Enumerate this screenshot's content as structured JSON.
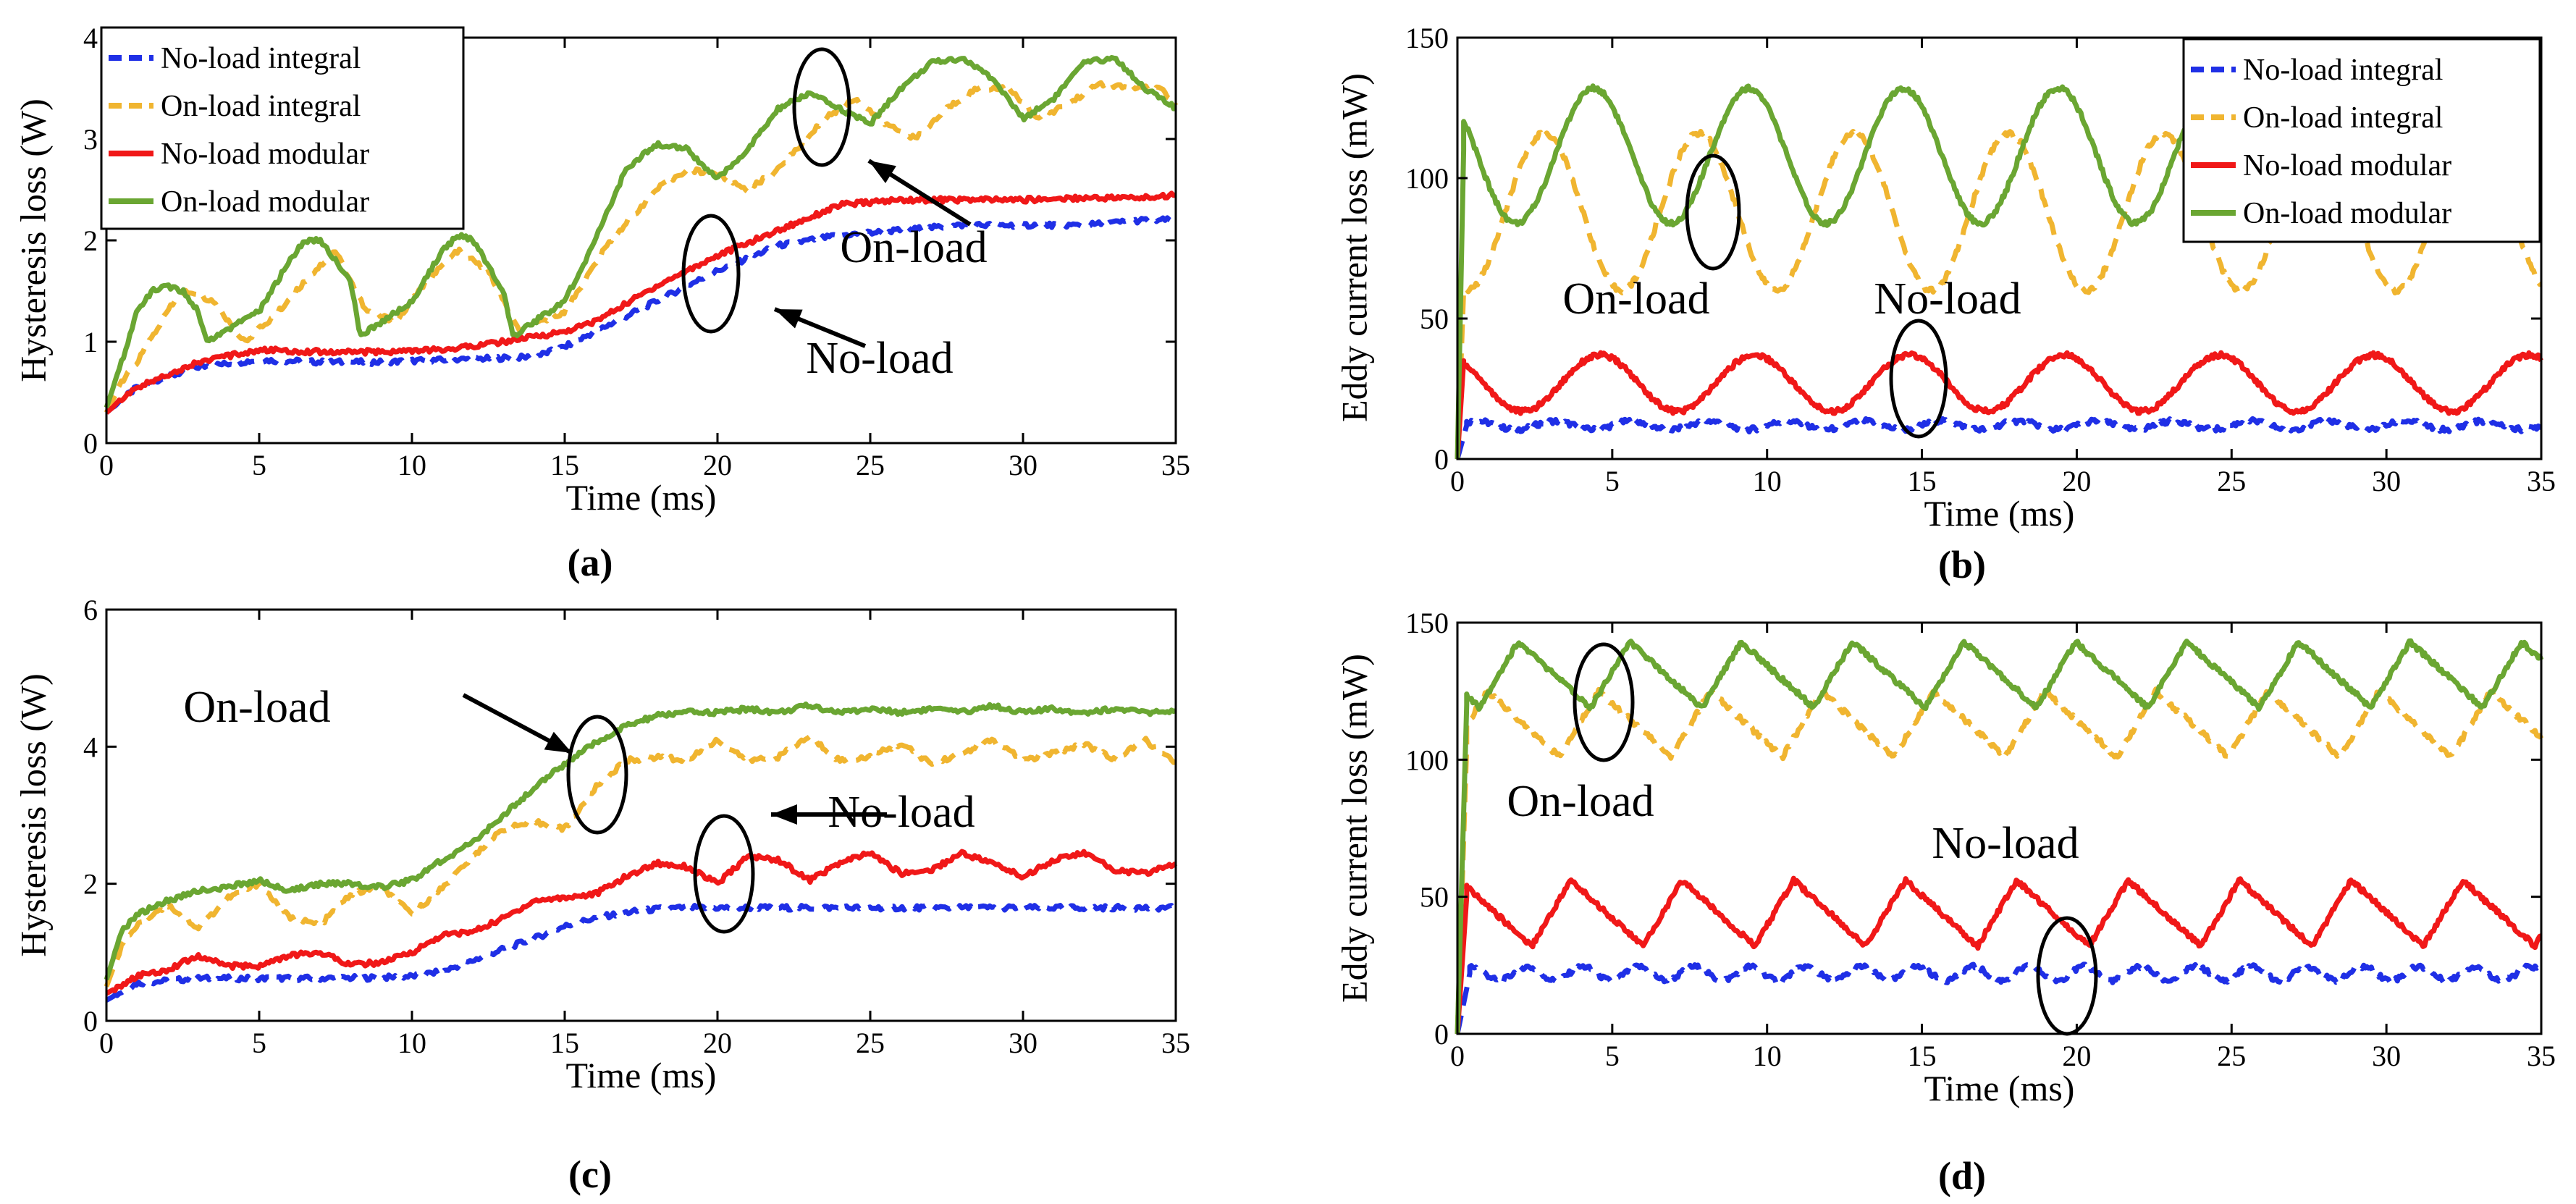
{
  "figure": {
    "series_colors": {
      "no_load_integral": "#1f2fe6",
      "on_load_integral": "#f0b530",
      "no_load_modular": "#f01818",
      "on_load_modular": "#6aa632"
    }
  },
  "chart_data": [
    {
      "id": "a",
      "panel_label": "(a)",
      "type": "line",
      "xlabel": "Time (ms)",
      "ylabel": "Hysteresis loss (W)",
      "xlim": [
        0,
        35
      ],
      "ylim": [
        0,
        4
      ],
      "xticks": [
        "0",
        "5",
        "10",
        "15",
        "20",
        "25",
        "30",
        "35"
      ],
      "yticks": [
        "0",
        "1",
        "2",
        "3",
        "4"
      ],
      "legend": {
        "position": "top-left",
        "entries": [
          "No-load integral",
          "On-load integral",
          "No-load modular",
          "On-load modular"
        ]
      },
      "annotations": [
        "On-load",
        "No-load"
      ],
      "series": [
        {
          "name": "No-load integral",
          "style": "dash",
          "color": "#1f2fe6",
          "x": [
            0,
            1,
            3,
            5,
            7,
            9,
            11,
            13,
            14,
            15,
            16,
            18,
            20,
            22,
            24,
            26,
            28,
            30,
            32,
            34,
            35
          ],
          "y": [
            0.3,
            0.55,
            0.75,
            0.82,
            0.8,
            0.8,
            0.82,
            0.84,
            0.85,
            0.95,
            1.1,
            1.4,
            1.7,
            1.95,
            2.05,
            2.1,
            2.15,
            2.15,
            2.15,
            2.2,
            2.2
          ]
        },
        {
          "name": "On-load integral",
          "style": "dash",
          "color": "#f0b530",
          "x": [
            0,
            0.5,
            1,
            2,
            2.5,
            3.5,
            4.5,
            5.5,
            6.5,
            7.5,
            8.5,
            9.5,
            10.5,
            11.5,
            12.5,
            13.5,
            15,
            16.5,
            18,
            19,
            20,
            21,
            22,
            23.5,
            24.5,
            25.5,
            26.5,
            27.5,
            28.5,
            29.5,
            30.5,
            31.5,
            32.5,
            33.5,
            34.5,
            35
          ],
          "y": [
            0.3,
            0.6,
            0.8,
            1.3,
            1.5,
            1.4,
            1.0,
            1.25,
            1.6,
            1.9,
            1.3,
            1.2,
            1.6,
            1.9,
            1.7,
            1.1,
            1.3,
            2.0,
            2.5,
            2.7,
            2.65,
            2.5,
            2.7,
            3.2,
            3.4,
            3.15,
            3.0,
            3.3,
            3.5,
            3.5,
            3.2,
            3.35,
            3.55,
            3.5,
            3.5,
            3.35
          ]
        },
        {
          "name": "No-load modular",
          "style": "solid",
          "color": "#f01818",
          "x": [
            0,
            1,
            3,
            5,
            7,
            9,
            11,
            13,
            15,
            16,
            18,
            20,
            22,
            24,
            26,
            28,
            30,
            32,
            34,
            35
          ],
          "y": [
            0.3,
            0.55,
            0.8,
            0.92,
            0.9,
            0.9,
            0.92,
            1.0,
            1.1,
            1.2,
            1.55,
            1.85,
            2.1,
            2.35,
            2.4,
            2.4,
            2.4,
            2.42,
            2.42,
            2.45
          ]
        },
        {
          "name": "On-load modular",
          "style": "solid",
          "color": "#6aa632",
          "x": [
            0,
            0.5,
            1,
            1.5,
            2,
            2.5,
            3,
            3.3,
            5,
            6,
            6.5,
            7,
            8,
            8.3,
            10,
            11,
            11.5,
            12,
            13,
            13.3,
            15,
            16,
            17,
            18,
            19,
            20,
            21,
            22,
            23,
            24,
            25,
            26,
            27,
            28,
            29,
            30,
            31,
            32,
            33,
            34,
            35
          ],
          "y": [
            0.35,
            0.8,
            1.3,
            1.5,
            1.55,
            1.5,
            1.3,
            1.0,
            1.3,
            1.8,
            2.0,
            2.0,
            1.6,
            1.05,
            1.4,
            1.9,
            2.05,
            2.0,
            1.5,
            1.05,
            1.4,
            2.0,
            2.7,
            2.95,
            2.9,
            2.6,
            2.9,
            3.3,
            3.45,
            3.3,
            3.15,
            3.5,
            3.75,
            3.8,
            3.6,
            3.2,
            3.4,
            3.75,
            3.8,
            3.5,
            3.3
          ]
        }
      ]
    },
    {
      "id": "b",
      "panel_label": "(b)",
      "type": "line",
      "xlabel": "Time (ms)",
      "ylabel": "Eddy current loss (mW)",
      "xlim": [
        0,
        35
      ],
      "ylim": [
        0,
        150
      ],
      "xticks": [
        "0",
        "5",
        "10",
        "15",
        "20",
        "25",
        "30",
        "35"
      ],
      "yticks": [
        "0",
        "50",
        "100",
        "150"
      ],
      "legend": {
        "position": "top-right",
        "entries": [
          "No-load integral",
          "On-load integral",
          "No-load modular",
          "On-load modular"
        ]
      },
      "annotations": [
        "On-load",
        "No-load"
      ],
      "series": [
        {
          "name": "No-load integral",
          "style": "dash",
          "color": "#1f2fe6",
          "x": [
            0,
            0.3,
            35
          ],
          "y": [
            0,
            12,
            12
          ],
          "wave": {
            "amp": 1.5,
            "period": 2.5
          }
        },
        {
          "name": "On-load integral",
          "style": "dash",
          "color": "#f0b530",
          "x": [
            0,
            0.2,
            35
          ],
          "y": [
            0,
            60,
            60
          ],
          "wave": {
            "shape": "cos",
            "base": 88,
            "amp": 28,
            "period": 5.0,
            "phase": 2.2
          }
        },
        {
          "name": "No-load modular",
          "style": "solid",
          "color": "#f01818",
          "x": [
            0,
            0.2,
            35
          ],
          "y": [
            0,
            35,
            35
          ],
          "wave": {
            "shape": "cos",
            "base": 27,
            "amp": 10,
            "period": 5.0,
            "phase": 5.4
          }
        },
        {
          "name": "On-load modular",
          "style": "solid",
          "color": "#6aa632",
          "x": [
            0,
            0.2,
            35
          ],
          "y": [
            0,
            110,
            110
          ],
          "wave": {
            "shape": "cos",
            "base": 108,
            "amp": 24,
            "period": 5.0,
            "phase": 0.6
          }
        }
      ]
    },
    {
      "id": "c",
      "panel_label": "(c)",
      "type": "line",
      "xlabel": "Time (ms)",
      "ylabel": "Hysteresis loss (W)",
      "xlim": [
        0,
        35
      ],
      "ylim": [
        0,
        6
      ],
      "xticks": [
        "0",
        "5",
        "10",
        "15",
        "20",
        "25",
        "30",
        "35"
      ],
      "yticks": [
        "0",
        "2",
        "4",
        "6"
      ],
      "annotations": [
        "On-load",
        "No-load"
      ],
      "series": [
        {
          "name": "No-load integral",
          "style": "dash",
          "color": "#1f2fe6",
          "x": [
            0,
            1,
            3,
            5,
            7,
            9,
            10,
            11,
            12,
            13,
            14,
            15,
            16,
            17,
            18,
            19,
            20,
            22,
            25,
            30,
            35
          ],
          "y": [
            0.3,
            0.55,
            0.62,
            0.62,
            0.62,
            0.63,
            0.65,
            0.72,
            0.88,
            1.05,
            1.2,
            1.38,
            1.5,
            1.58,
            1.63,
            1.65,
            1.65,
            1.65,
            1.65,
            1.65,
            1.65
          ]
        },
        {
          "name": "On-load integral",
          "style": "dash",
          "color": "#f0b530",
          "x": [
            0,
            0.5,
            1,
            2,
            3,
            4,
            5,
            6,
            7,
            8,
            9,
            10,
            11,
            12,
            13,
            14,
            15,
            16,
            17,
            18,
            19,
            20,
            21,
            22,
            23,
            24,
            25,
            26,
            27,
            28,
            29,
            30,
            31,
            32,
            33,
            34,
            35
          ],
          "y": [
            0.5,
            1.1,
            1.4,
            1.7,
            1.35,
            1.8,
            2.0,
            1.5,
            1.4,
            1.85,
            1.95,
            1.55,
            1.95,
            2.4,
            2.8,
            2.9,
            2.8,
            3.4,
            3.8,
            3.85,
            3.8,
            4.1,
            3.8,
            3.85,
            4.15,
            3.8,
            3.85,
            4.05,
            3.75,
            3.9,
            4.1,
            3.8,
            3.9,
            4.05,
            3.8,
            4.1,
            3.75
          ]
        },
        {
          "name": "No-load modular",
          "style": "solid",
          "color": "#f01818",
          "x": [
            0,
            1,
            2,
            3,
            4,
            5,
            6,
            7,
            8,
            9,
            10,
            11,
            12,
            13,
            14,
            15,
            16,
            17,
            18,
            19,
            20,
            21,
            22,
            23,
            24,
            25,
            26,
            27,
            28,
            29,
            30,
            31,
            32,
            33,
            34,
            35
          ],
          "y": [
            0.4,
            0.65,
            0.75,
            0.95,
            0.8,
            0.8,
            0.95,
            1.0,
            0.82,
            0.85,
            1.0,
            1.25,
            1.3,
            1.5,
            1.75,
            1.8,
            1.85,
            2.1,
            2.3,
            2.25,
            2.0,
            2.4,
            2.35,
            2.05,
            2.3,
            2.45,
            2.15,
            2.2,
            2.45,
            2.3,
            2.1,
            2.35,
            2.45,
            2.2,
            2.15,
            2.3
          ]
        },
        {
          "name": "On-load modular",
          "style": "solid",
          "color": "#6aa632",
          "x": [
            0,
            0.5,
            1,
            2,
            3,
            4,
            5,
            6,
            7,
            8,
            9,
            10,
            11,
            12,
            13,
            14,
            15,
            16,
            17,
            18,
            19,
            20,
            21,
            22,
            23,
            24,
            25,
            26,
            27,
            28,
            29,
            30,
            31,
            32,
            33,
            34,
            35
          ],
          "y": [
            0.6,
            1.3,
            1.55,
            1.75,
            1.9,
            1.95,
            2.05,
            1.9,
            2.0,
            2.0,
            1.95,
            2.05,
            2.35,
            2.6,
            3.0,
            3.4,
            3.75,
            4.05,
            4.3,
            4.45,
            4.5,
            4.5,
            4.55,
            4.5,
            4.6,
            4.5,
            4.55,
            4.5,
            4.55,
            4.5,
            4.6,
            4.5,
            4.55,
            4.5,
            4.55,
            4.5,
            4.5
          ]
        }
      ]
    },
    {
      "id": "d",
      "panel_label": "(d)",
      "type": "line",
      "xlabel": "Time (ms)",
      "ylabel": "Eddy current loss (mW)",
      "xlim": [
        0,
        35
      ],
      "ylim": [
        0,
        150
      ],
      "xticks": [
        "0",
        "5",
        "10",
        "15",
        "20",
        "25",
        "30",
        "35"
      ],
      "yticks": [
        "0",
        "50",
        "100",
        "150"
      ],
      "annotations": [
        "On-load",
        "No-load"
      ],
      "series": [
        {
          "name": "No-load integral",
          "style": "dash",
          "color": "#1f2fe6",
          "x": [
            0,
            0.4,
            35
          ],
          "y": [
            0,
            22,
            22
          ],
          "wave": {
            "amp": 2.5,
            "period": 1.8
          }
        },
        {
          "name": "On-load integral",
          "style": "dash",
          "color": "#f0b530",
          "x": [
            0,
            0.3,
            35
          ],
          "y": [
            0,
            105,
            105
          ],
          "wave": {
            "shape": "tri",
            "base": 113,
            "amp": 12,
            "period": 3.6,
            "phase": 0.3
          }
        },
        {
          "name": "No-load modular",
          "style": "solid",
          "color": "#f01818",
          "x": [
            0,
            0.3,
            35
          ],
          "y": [
            0,
            50,
            50
          ],
          "wave": {
            "shape": "tri",
            "base": 44,
            "amp": 12,
            "period": 3.6,
            "phase": 1.2
          }
        },
        {
          "name": "On-load modular",
          "style": "solid",
          "color": "#6aa632",
          "x": [
            0,
            0.3,
            35
          ],
          "y": [
            0,
            120,
            120
          ],
          "wave": {
            "shape": "tri",
            "base": 131,
            "amp": 12,
            "period": 3.6,
            "phase": 2.9
          }
        }
      ]
    }
  ]
}
